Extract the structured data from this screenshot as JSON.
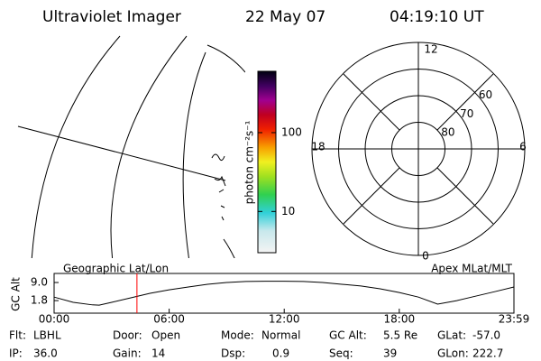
{
  "header": {
    "title": "Ultraviolet Imager",
    "date": "22 May 07",
    "time": "04:19:10 UT"
  },
  "colorbar": {
    "label": "photon cm⁻²s⁻¹",
    "log_scale": true,
    "lim": [
      3,
      600
    ],
    "ticks": [
      10,
      100
    ]
  },
  "polar": {
    "mlt_labels": [
      "12",
      "18",
      "6",
      "0"
    ],
    "lat_rings": [
      80,
      70,
      60
    ]
  },
  "altitude_plot": {
    "left_label": "Geographic Lat/Lon",
    "right_label": "Apex MLat/MLT",
    "ylabel": "GC Alt",
    "x": [
      0,
      1,
      2,
      2.35,
      3,
      4,
      5,
      6,
      7,
      8,
      9,
      10,
      11,
      12,
      13,
      14,
      15,
      16,
      17,
      18,
      19,
      20,
      21,
      22,
      23,
      23.98
    ],
    "values": [
      3.2,
      1.1,
      0.1,
      0.0,
      1.1,
      2.9,
      4.7,
      6.1,
      7.2,
      8.3,
      9.0,
      9.4,
      9.5,
      9.5,
      9.4,
      9.0,
      8.3,
      7.6,
      6.5,
      5.0,
      3.2,
      0.4,
      1.8,
      3.6,
      5.4,
      7.2
    ],
    "color": "#000000",
    "marker_x": 4.32,
    "marker_color": "#ff0000",
    "xlim": [
      0,
      23.98
    ],
    "ylim": [
      -3.2,
      12.6
    ],
    "xticks": [
      {
        "value": 0,
        "label": "00:00"
      },
      {
        "value": 6,
        "label": "06:00"
      },
      {
        "value": 12,
        "label": "12:00"
      },
      {
        "value": 18,
        "label": "18:00"
      },
      {
        "value": 23.98,
        "label": "23:59"
      }
    ],
    "yticks": [
      {
        "value": 9,
        "label": "9.0"
      },
      {
        "value": 1.8,
        "label": "1.8"
      }
    ]
  },
  "status": [
    [
      {
        "label": "Flt:",
        "value": "LBHL"
      },
      {
        "label": "Door:",
        "value": "Open"
      },
      {
        "label": "Mode:",
        "value": "Normal"
      },
      {
        "label": "GC Alt:",
        "value": "5.5 Re"
      },
      {
        "label": "GLat:",
        "value": "-57.0"
      }
    ],
    [
      {
        "label": "IP:",
        "value": "36.0"
      },
      {
        "label": "Gain:",
        "value": "14"
      },
      {
        "label": "Dsp:",
        "value": "0.9"
      },
      {
        "label": "Seq:",
        "value": "39"
      },
      {
        "label": "GLon:",
        "value": "222.7"
      }
    ]
  ]
}
